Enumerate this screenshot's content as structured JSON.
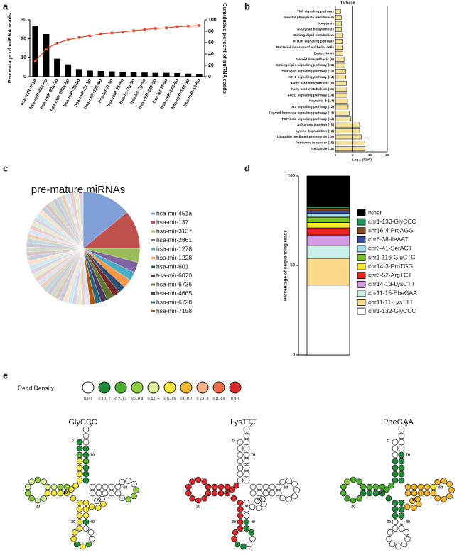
{
  "panel_labels": [
    "a",
    "b",
    "c",
    "d",
    "e"
  ],
  "chart_data": [
    {
      "type": "bar",
      "categories": [
        "hsa-miR-451a",
        "hsa-miR-486-5p",
        "hsa-miR-92a-3p",
        "hsa-miR-183a-5p",
        "hsa-miR-25-3p",
        "hsa-miR-22-3p",
        "hsa-miR-191-5p",
        "hsa-let-7i-5p",
        "hsa-miR-21-5p",
        "hsa-let-7a-5p",
        "hsa-let-7g-5p",
        "hsa-miR-142-5p",
        "hsa-let-7f-5p",
        "hsa-miR-148-5p",
        "hsa-miR-144-3p",
        "hsa-miR-16-5p"
      ],
      "series": [
        {
          "color": "#000000",
          "values": [
            27,
            22.5,
            9.5,
            6.5,
            4,
            3.2,
            3,
            2.8,
            2.5,
            2.3,
            2.2,
            2,
            2,
            1.9,
            1.6,
            1.5
          ]
        },
        {
          "type": "line",
          "axis": "y2",
          "color": "#e8472a",
          "values": [
            27,
            49,
            59,
            65,
            69,
            72,
            75,
            77,
            79,
            81,
            83,
            85,
            86,
            88,
            89,
            90
          ]
        }
      ],
      "ylabel": "Percentage of miRNA reads",
      "y2label": "Cumulative percent of miRNA reads",
      "ylim": [
        0,
        30
      ],
      "yticks": [
        0,
        10,
        20,
        30
      ],
      "y2lim": [
        0,
        100
      ],
      "y2ticks": [
        0,
        20,
        40,
        60,
        80,
        100
      ]
    },
    {
      "type": "barh",
      "title": "Tarbase",
      "categories": [
        "TNF signaling pathway",
        "Inositol phosphate metabolism",
        "Apoptosis",
        "N-Glycan biosynthesis",
        "Sphingolipid metabolism",
        "mTOR signaling pathway",
        "Bacterial invasion of epithelial cells",
        "Endocytosis",
        "Steroid biosynthesis (6)",
        "Sphingolipid signaling pathway (16)",
        "Estrogen signaling pathway (13)",
        "HIF-1 signaling pathway (14)",
        "Fatty acid biosynthesis (6)",
        "Fatty acid metabolism (11)",
        "FoxO signaling pathway (14)",
        "Hepatitis B (14)",
        "p53 signaling pathway (12)",
        "Thyroid hormone signaling pathway (13)",
        "TGF-beta signaling pathway (14)",
        "Adherens junction (15)",
        "Lysine degradation (12)",
        "Ubiquitin mediated proteolysis (19)",
        "Pathways in cancer (15)",
        "Cell cycle (15)"
      ],
      "values": [
        1.5,
        1.7,
        1.8,
        1.8,
        1.9,
        2,
        2,
        2.2,
        2.5,
        2.8,
        3,
        3,
        3.2,
        3.3,
        3.4,
        3.5,
        3.7,
        4,
        4.5,
        7,
        7,
        7.5,
        8.5,
        8.5
      ],
      "color": "#f6e39a",
      "xlabel": "-Log₁₀ (FDR)",
      "xlim": [
        0,
        15
      ],
      "xticks": [
        0,
        5,
        10,
        15
      ],
      "grid": true
    },
    {
      "type": "pie",
      "title": "pre-mature miRNAs",
      "categories": [
        "hsa-mir-451a",
        "hsa-mir-137",
        "hsa-mir-3137",
        "hsa-mir-2861",
        "hsa-mir-1278",
        "hsa-mir-1228",
        "hsa-mir-601",
        "hsa-mir-6070",
        "hsa-mir-6736",
        "hsa-mir-4665",
        "hsa-mir-6728",
        "hsa-mir-7158",
        null,
        null,
        null,
        null,
        null,
        null,
        null,
        null,
        null,
        null,
        null,
        null,
        null,
        null,
        null,
        null,
        null,
        null,
        null,
        null,
        null,
        null,
        null,
        null,
        null,
        null,
        null,
        null,
        null,
        null,
        null,
        null,
        null,
        null,
        null,
        null,
        null,
        null,
        null,
        null
      ],
      "values": [
        14,
        11,
        4,
        3,
        2.5,
        2.5,
        2,
        2,
        2,
        1.8,
        1.7,
        1.5,
        1.3,
        1.3,
        1.3,
        1.3,
        1.3,
        1.3,
        1.3,
        1.3,
        1.3,
        1.3,
        1.3,
        1.3,
        1.3,
        1.3,
        1.3,
        1.3,
        1.3,
        1.3,
        1.3,
        1.3,
        1.3,
        1.3,
        1.3,
        1.3,
        1.3,
        1.3,
        1.3,
        1.3,
        1.3,
        1.3,
        1.3,
        1.3,
        1.3,
        1.3,
        1.3,
        1.3,
        1.3,
        1.3,
        1.3,
        1.3
      ],
      "colors": [
        "#7f9fd6",
        "#c0504d",
        "#9bbb59",
        "#8064a2",
        "#4bacc6",
        "#f79646",
        "#2c4d75",
        "#772c2a",
        "#5f7530",
        "#4d3b62",
        "#276a7c",
        "#b65708"
      ]
    },
    {
      "type": "stacked_bar",
      "ylabel": "Percentage of sequencing reads",
      "ylim": [
        0,
        100
      ],
      "yticks": [
        0,
        50,
        100
      ],
      "series": [
        {
          "name": "chr1-132-GlyCCC",
          "color": "#ffffff",
          "values": [
            39
          ]
        },
        {
          "name": "chr11-11-LysTTT",
          "color": "#fbd98b",
          "values": [
            15
          ]
        },
        {
          "name": "chr11-15-PheGAA",
          "color": "#c9f0e8",
          "values": [
            7
          ]
        },
        {
          "name": "chr14-13-LysCTT",
          "color": "#d29be0",
          "values": [
            6
          ]
        },
        {
          "name": "chr6-52-ArgTCT",
          "color": "#e8261c",
          "values": [
            4
          ]
        },
        {
          "name": "chr14-3-ProTGG",
          "color": "#f5e92a",
          "values": [
            3
          ]
        },
        {
          "name": "chr1-116-GluCTC",
          "color": "#7bc12a",
          "values": [
            3
          ]
        },
        {
          "name": "chr6-41-SerACT",
          "color": "#a6dcef",
          "values": [
            2
          ]
        },
        {
          "name": "chr6-38-IleAAT",
          "color": "#3a4fa3",
          "values": [
            1.5
          ]
        },
        {
          "name": "chr16-4-ProAGG",
          "color": "#8a4a20",
          "values": [
            1.5
          ]
        },
        {
          "name": "chr1-130-GlyCCC",
          "color": "#1f9a5b",
          "values": [
            1
          ]
        },
        {
          "name": "other",
          "color": "#000000",
          "values": [
            17
          ]
        }
      ]
    }
  ],
  "trna_panel": {
    "legend_title": "Read Density",
    "legend_labels": [
      "0-0.1",
      "0.1-0.2",
      "0.2-0.3",
      "0.3-0.4",
      "0.4-0.5",
      "0.5-0.6",
      "0.6-0.7",
      "0.7-0.8",
      "0.8-0.9",
      "0.9-1"
    ],
    "legend_colors": [
      "#ffffff",
      "#1e8a3a",
      "#4caf30",
      "#8fcf3f",
      "#d9ef9a",
      "#f4e53a",
      "#f3b52b",
      "#f5b08a",
      "#ef6b4a",
      "#d9262a"
    ],
    "end_labels": [
      "5'",
      "3'"
    ],
    "position_ticks": [
      10,
      20,
      30,
      40,
      50,
      60,
      70
    ],
    "trnas": [
      {
        "name": "GlyCCC",
        "density": [
          1,
          1,
          2,
          5,
          5,
          5,
          5,
          5,
          5,
          3,
          3,
          4,
          4,
          4,
          3,
          4,
          4,
          3,
          3,
          4,
          4,
          5,
          5,
          5,
          5,
          5,
          5,
          5,
          5,
          5,
          5,
          5,
          5,
          1,
          5,
          2,
          0,
          0,
          0,
          1,
          5,
          5,
          5,
          5,
          5,
          5,
          0,
          0,
          0,
          0,
          0,
          0,
          0,
          0,
          3,
          3,
          3,
          0,
          0,
          0,
          0,
          0,
          0,
          0,
          0,
          1,
          1,
          1,
          2,
          1,
          1,
          0,
          0,
          0
        ]
      },
      {
        "name": "LysTTT",
        "density": [
          0,
          0,
          0,
          0,
          0,
          0,
          0,
          9,
          9,
          9,
          9,
          9,
          9,
          9,
          9,
          9,
          9,
          9,
          9,
          9,
          9,
          9,
          9,
          9,
          9,
          9,
          9,
          9,
          9,
          9,
          9,
          9,
          9,
          1,
          1,
          0,
          0,
          1,
          1,
          1,
          0,
          0,
          0,
          0,
          0,
          0,
          0,
          0,
          0,
          0,
          0,
          0,
          0,
          0,
          0,
          0,
          0,
          0,
          0,
          0,
          0,
          0,
          0,
          0,
          0,
          0,
          0,
          0,
          0,
          0,
          0,
          0,
          0,
          0
        ]
      },
      {
        "name": "PheGAA",
        "density": [
          0,
          0,
          0,
          1,
          1,
          1,
          1,
          2,
          2,
          2,
          2,
          2,
          2,
          2,
          2,
          3,
          2,
          2,
          2,
          2,
          2,
          1,
          1,
          1,
          1,
          1,
          1,
          1,
          1,
          0,
          0,
          0,
          0,
          0,
          0,
          0,
          0,
          0,
          0,
          0,
          1,
          1,
          1,
          6,
          6,
          6,
          6,
          6,
          6,
          6,
          6,
          6,
          6,
          6,
          6,
          6,
          6,
          6,
          6,
          6,
          5,
          6,
          6,
          6,
          6,
          1,
          1,
          1,
          1,
          1,
          0,
          0,
          0,
          0
        ]
      }
    ]
  }
}
